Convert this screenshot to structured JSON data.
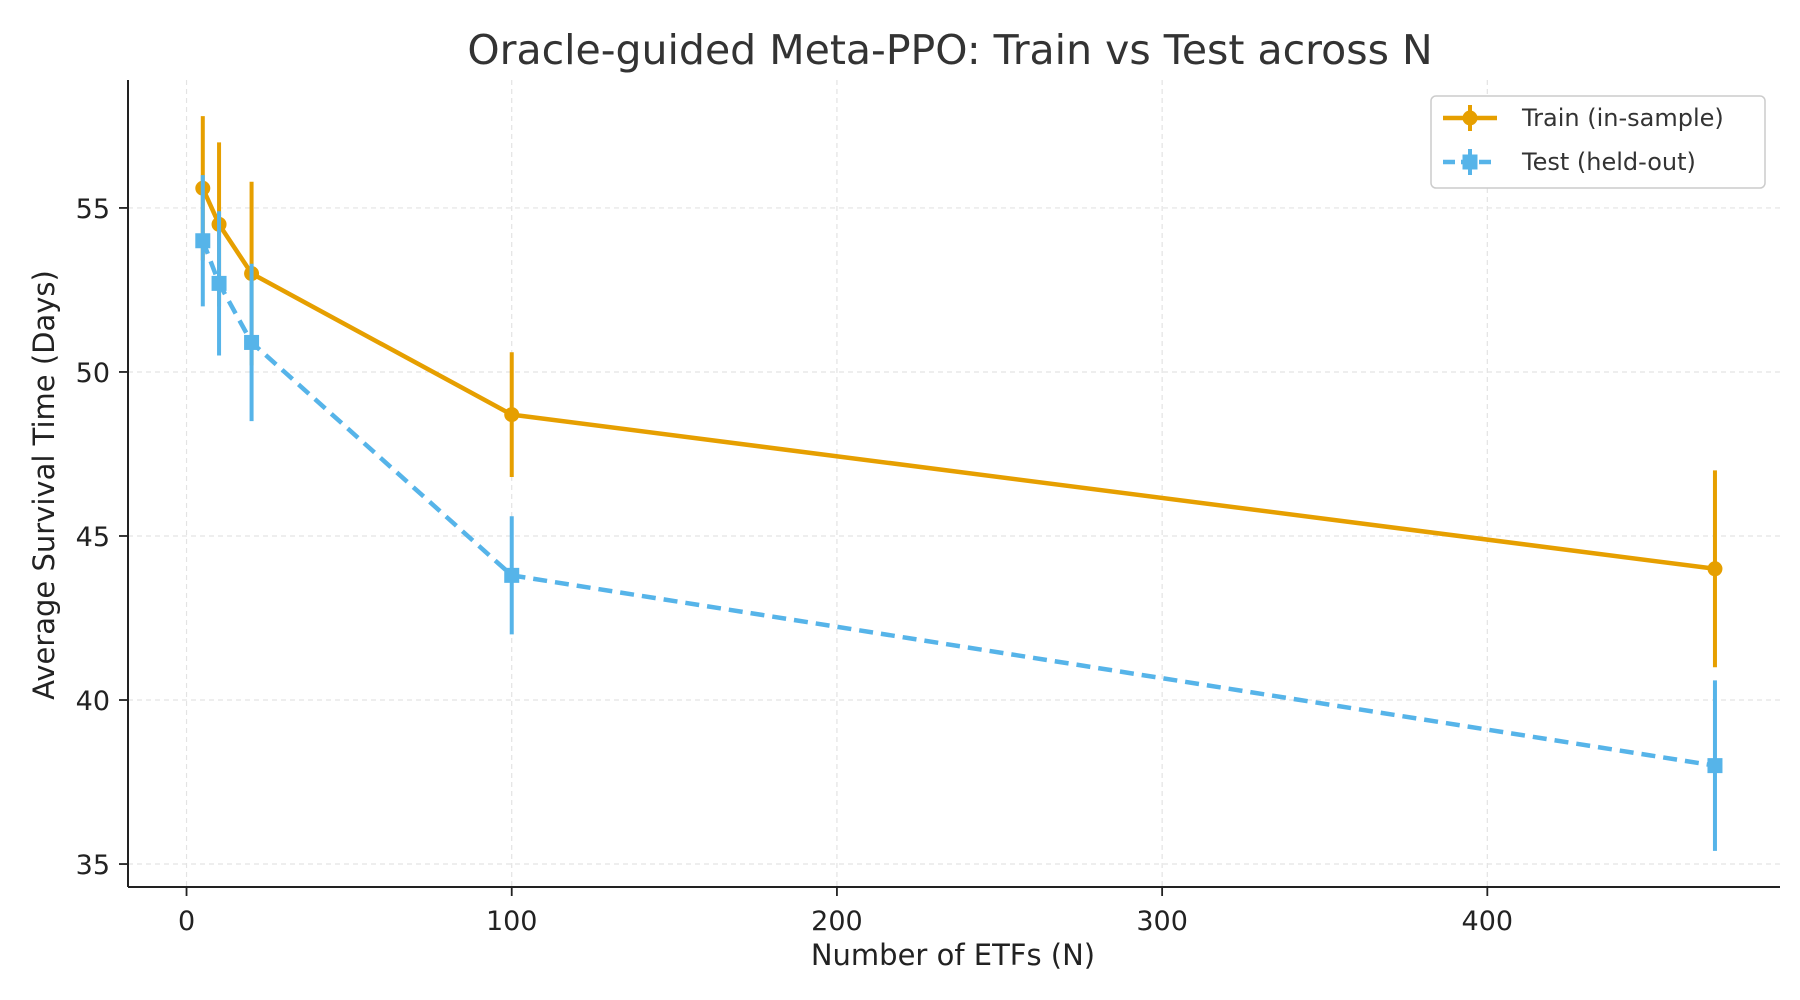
{
  "chart_data": {
    "type": "line",
    "title": "Oracle-guided Meta-PPO: Train vs Test across N",
    "xlabel": "Number of ETFs (N)",
    "ylabel": "Average Survival Time (Days)",
    "xlim": [
      -18,
      490
    ],
    "ylim": [
      34.3,
      58.9
    ],
    "xticks": [
      0,
      100,
      200,
      300,
      400
    ],
    "yticks": [
      35,
      40,
      45,
      50,
      55
    ],
    "grid": true,
    "legend_position": "top-right",
    "series": [
      {
        "name": "Train (in-sample)",
        "color": "#E69F00",
        "line_style": "solid",
        "marker": "circle",
        "x": [
          5,
          10,
          20,
          100,
          470
        ],
        "y": [
          55.6,
          54.5,
          53.0,
          48.7,
          44.0
        ],
        "error": [
          2.2,
          2.5,
          2.8,
          1.9,
          3.0
        ]
      },
      {
        "name": "Test (held-out)",
        "color": "#56B4E9",
        "line_style": "dashed",
        "marker": "square",
        "x": [
          5,
          10,
          20,
          100,
          470
        ],
        "y": [
          54.0,
          52.7,
          50.9,
          43.8,
          38.0
        ],
        "error": [
          2.0,
          2.2,
          2.4,
          1.8,
          2.6
        ]
      }
    ]
  }
}
